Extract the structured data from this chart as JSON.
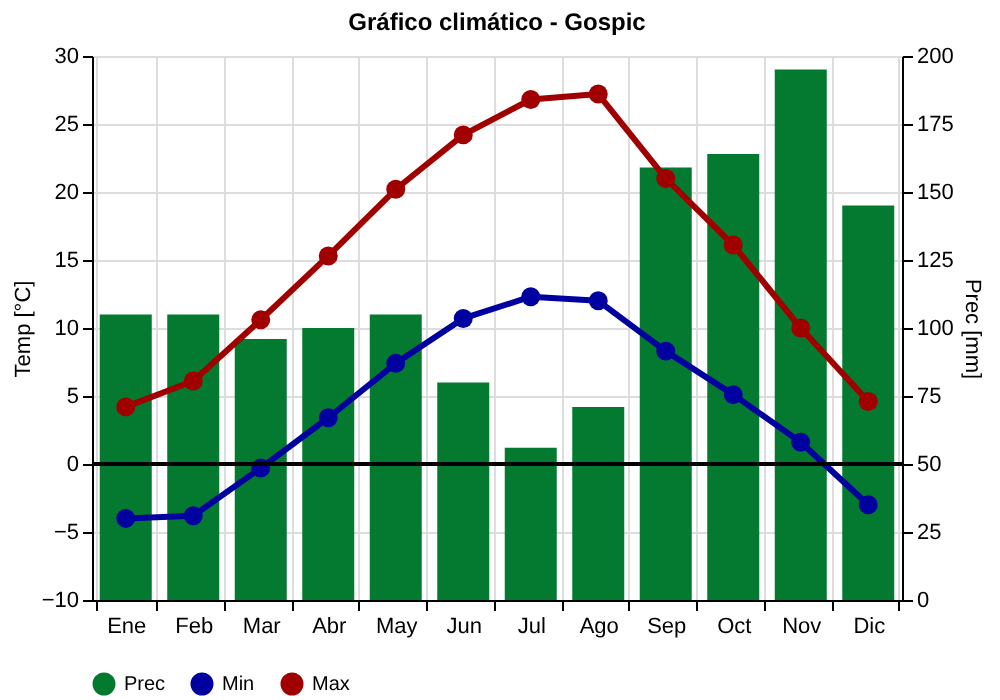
{
  "chart_data": {
    "type": "line",
    "title": "Gráfico climático - Gospic",
    "categories": [
      "Ene",
      "Feb",
      "Mar",
      "Abr",
      "May",
      "Jun",
      "Jul",
      "Ago",
      "Sep",
      "Oct",
      "Nov",
      "Dic"
    ],
    "series": [
      {
        "name": "Prec",
        "type": "bar",
        "axis": "y2",
        "color": "#037a30",
        "values": [
          105,
          105,
          96,
          100,
          105,
          80,
          56,
          71,
          159,
          164,
          195,
          145
        ]
      },
      {
        "name": "Min",
        "color": "#0000a0",
        "values": [
          -4,
          -3.8,
          -0.3,
          3.4,
          7.4,
          10.7,
          12.3,
          12,
          8.3,
          5.1,
          1.6,
          -3
        ]
      },
      {
        "name": "Max",
        "color": "#a00000",
        "values": [
          4.2,
          6.1,
          10.6,
          15.3,
          20.2,
          24.2,
          26.8,
          27.2,
          21,
          16.1,
          10,
          4.6
        ]
      }
    ],
    "ylabel": "Temp [°C]",
    "y2label": "Prec [mm]",
    "ylim": [
      -10,
      30
    ],
    "yticks": [
      -10,
      -5,
      0,
      5,
      10,
      15,
      20,
      25,
      30
    ],
    "y2lim": [
      0,
      200
    ],
    "y2ticks": [
      0,
      25,
      50,
      75,
      100,
      125,
      150,
      175,
      200
    ],
    "ref_lines": [
      {
        "axis": "y",
        "value": 0,
        "color": "#000000"
      }
    ],
    "grid": true,
    "legend": "bottom",
    "marker": "circle",
    "line_style": "solid"
  }
}
